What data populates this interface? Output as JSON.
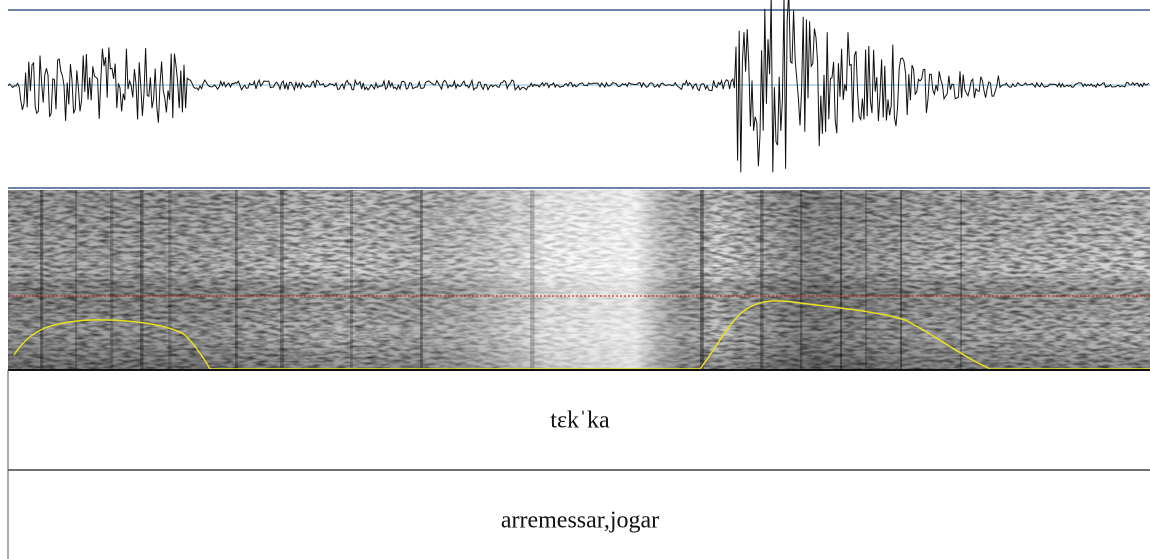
{
  "tiers": [
    {
      "label": "tɛkˈka"
    },
    {
      "label": "arremessar,jogar"
    }
  ]
}
